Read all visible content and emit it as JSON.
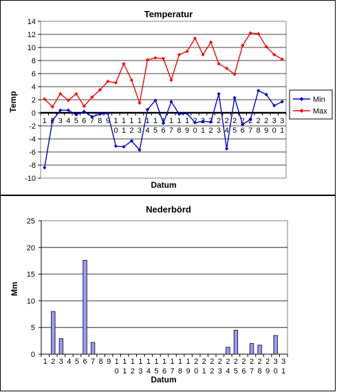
{
  "chart_data": [
    {
      "type": "line",
      "title": "Temperatur",
      "xlabel": "Datum",
      "ylabel": "Temp",
      "ylim": [
        -10,
        14
      ],
      "yticks": [
        -10,
        -8,
        -6,
        -4,
        -2,
        0,
        2,
        4,
        6,
        8,
        10,
        12,
        14
      ],
      "grid": true,
      "legend": "right",
      "categories": [
        "1",
        "2",
        "3",
        "4",
        "5",
        "6",
        "7",
        "8",
        "9",
        "10",
        "11",
        "12",
        "13",
        "14",
        "15",
        "16",
        "17",
        "18",
        "19",
        "20",
        "21",
        "22",
        "23",
        "24",
        "25",
        "26",
        "27",
        "28",
        "29",
        "30",
        "31"
      ],
      "series": [
        {
          "name": "Min",
          "color": "#0000cc",
          "values": [
            -8.4,
            -1.2,
            0.4,
            0.4,
            -0.3,
            0.2,
            -0.6,
            -0.2,
            -0.1,
            -5.1,
            -5.2,
            -4.3,
            -5.7,
            0.5,
            1.9,
            -1.6,
            1.7,
            -0.2,
            -0.1,
            -1.5,
            -1.3,
            -1.4,
            2.9,
            -5.5,
            2.3,
            -1.8,
            -1.0,
            3.4,
            2.8,
            1.1,
            1.7
          ]
        },
        {
          "name": "Max",
          "color": "#ff0000",
          "values": [
            2.1,
            0.9,
            2.9,
            1.9,
            2.9,
            1.0,
            2.4,
            3.5,
            4.8,
            4.6,
            7.5,
            5.0,
            1.5,
            8.1,
            8.4,
            8.3,
            5.0,
            8.9,
            9.4,
            11.4,
            8.9,
            10.8,
            7.5,
            6.8,
            5.9,
            10.3,
            12.2,
            12.1,
            10.1,
            8.9,
            8.2
          ]
        }
      ]
    },
    {
      "type": "bar",
      "title": "Nederbörd",
      "xlabel": "Datum",
      "ylabel": "Mm",
      "ylim": [
        0,
        25
      ],
      "yticks": [
        0,
        5,
        10,
        15,
        20,
        25
      ],
      "grid": true,
      "bar_color": "#9999ff",
      "categories": [
        "1",
        "2",
        "3",
        "4",
        "5",
        "6",
        "7",
        "8",
        "9",
        "10",
        "11",
        "12",
        "13",
        "14",
        "15",
        "16",
        "17",
        "18",
        "19",
        "20",
        "21",
        "22",
        "23",
        "24",
        "25",
        "26",
        "27",
        "28",
        "29",
        "30",
        "31"
      ],
      "values": [
        0,
        8.0,
        2.9,
        0,
        0,
        17.6,
        2.2,
        0,
        0,
        0,
        0,
        0,
        0,
        0,
        0,
        0,
        0,
        0,
        0,
        0,
        0,
        0,
        0,
        1.3,
        4.5,
        0,
        2.0,
        1.7,
        0,
        3.5,
        0
      ]
    }
  ]
}
